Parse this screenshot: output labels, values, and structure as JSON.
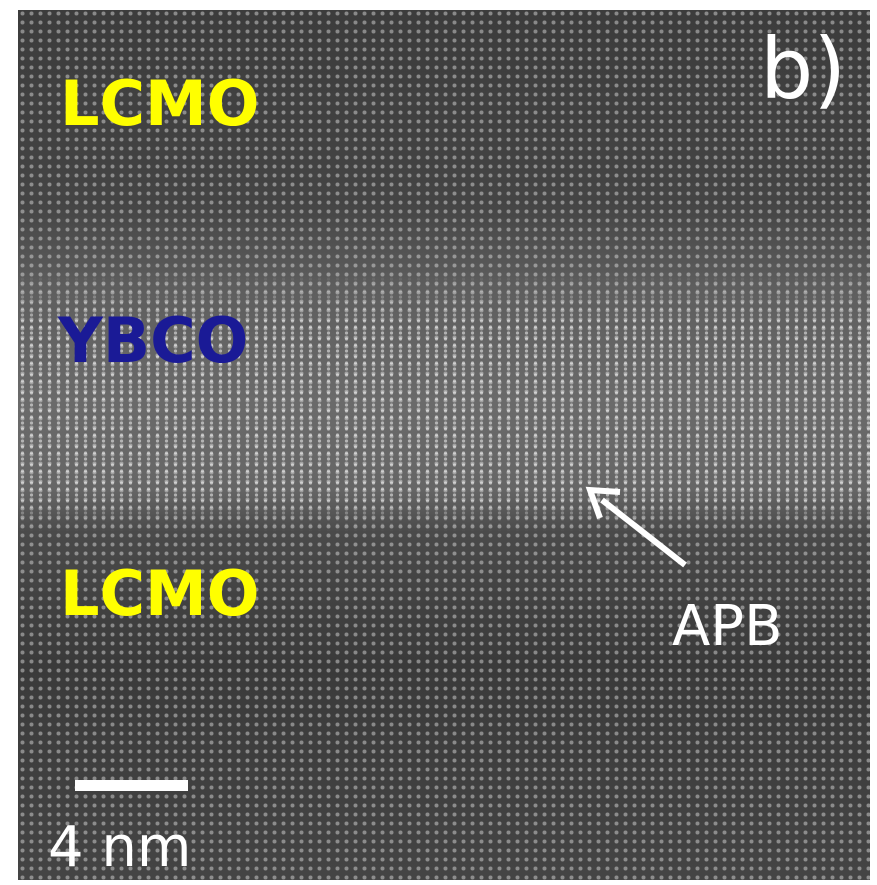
{
  "panel_label": "b)",
  "layers": [
    {
      "label": "LCMO"
    },
    {
      "label": "YBCO"
    },
    {
      "label": "LCMO"
    }
  ],
  "annotation": "APB",
  "scale_bar": "4 nm"
}
